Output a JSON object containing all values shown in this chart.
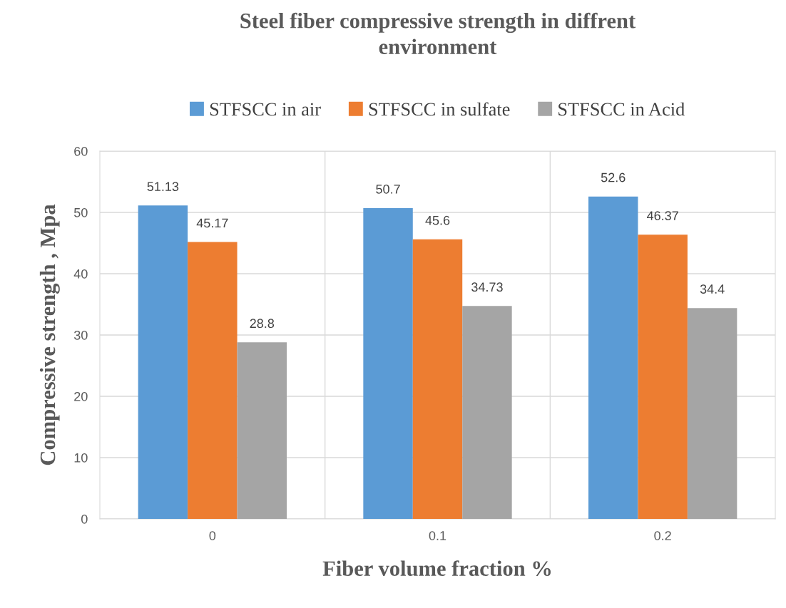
{
  "chart_data": {
    "type": "bar",
    "title": "Steel fiber compressive strength in diffrent\nenvironment",
    "xlabel": "Fiber volume fraction %",
    "ylabel": "Compressive strength , Mpa",
    "categories": [
      "0",
      "0.1",
      "0.2"
    ],
    "series": [
      {
        "name": "STFSCC in air",
        "color": "#5b9bd5",
        "values": [
          51.13,
          50.7,
          52.6
        ]
      },
      {
        "name": "STFSCC in sulfate",
        "color": "#ed7d31",
        "values": [
          45.17,
          45.6,
          46.37
        ]
      },
      {
        "name": "STFSCC in Acid",
        "color": "#a5a5a5",
        "values": [
          28.8,
          34.73,
          34.4
        ]
      }
    ],
    "ylim": [
      0,
      60
    ],
    "yticks": [
      0,
      10,
      20,
      30,
      40,
      50,
      60
    ],
    "grid": true,
    "legend": "top",
    "data_labels": true
  }
}
